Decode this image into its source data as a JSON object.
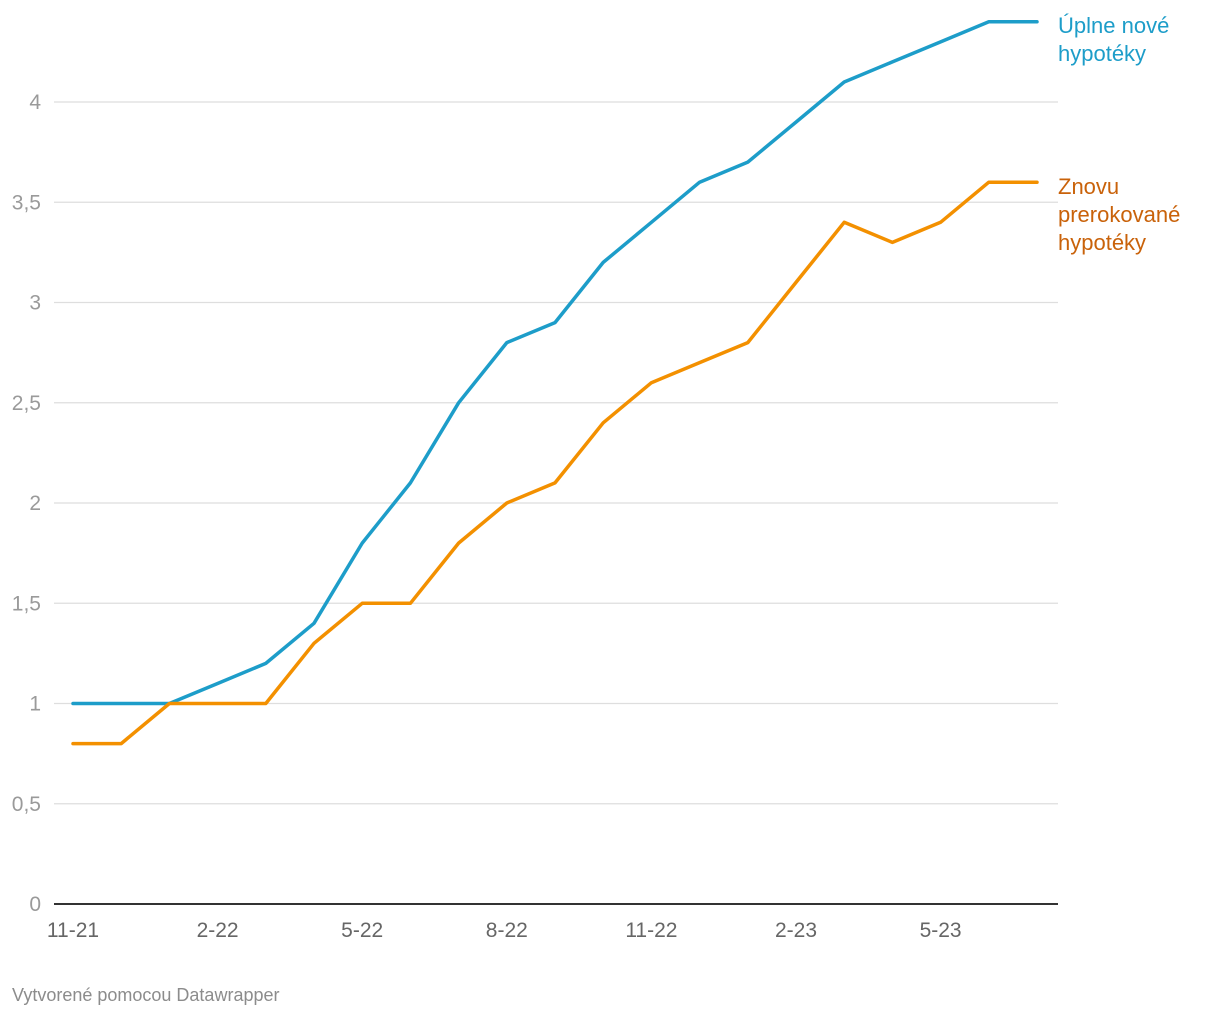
{
  "chart_data": {
    "type": "line",
    "title": "",
    "xlabel": "",
    "ylabel": "",
    "ylim": [
      0,
      4.4
    ],
    "yticks": [
      0,
      0.5,
      1,
      1.5,
      2,
      2.5,
      3,
      3.5,
      4
    ],
    "ytick_labels": [
      "0",
      "0,5",
      "1",
      "1,5",
      "2",
      "2,5",
      "3",
      "3,5",
      "4"
    ],
    "categories": [
      "11-21",
      "12-21",
      "1-22",
      "2-22",
      "3-22",
      "4-22",
      "5-22",
      "6-22",
      "7-22",
      "8-22",
      "9-22",
      "10-22",
      "11-22",
      "12-22",
      "1-23",
      "2-23",
      "3-23",
      "4-23",
      "5-23",
      "6-23",
      "7-23"
    ],
    "xtick_labels": [
      "11-21",
      "2-22",
      "5-22",
      "8-22",
      "11-22",
      "2-23",
      "5-23"
    ],
    "grid": true,
    "series": [
      {
        "name": "Úplne nové hypotéky",
        "label_lines": [
          "Úplne nové",
          "hypotéky"
        ],
        "color": "#1d9dc9",
        "values": [
          1.0,
          1.0,
          1.0,
          1.1,
          1.2,
          1.4,
          1.8,
          2.1,
          2.5,
          2.8,
          2.9,
          3.2,
          3.4,
          3.6,
          3.7,
          3.9,
          4.1,
          4.2,
          4.3,
          4.4,
          4.4
        ]
      },
      {
        "name": "Znovu prerokované hypotéky",
        "label_lines": [
          "Znovu",
          "prerokované",
          "hypotéky"
        ],
        "color": "#f39000",
        "label_color": "#c9620a",
        "values": [
          0.8,
          0.8,
          1.0,
          1.0,
          1.0,
          1.3,
          1.5,
          1.5,
          1.8,
          2.0,
          2.1,
          2.4,
          2.6,
          2.7,
          2.8,
          3.1,
          3.4,
          3.3,
          3.4,
          3.6,
          3.6
        ]
      }
    ]
  },
  "footer": {
    "credit": "Vytvorené pomocou Datawrapper"
  }
}
